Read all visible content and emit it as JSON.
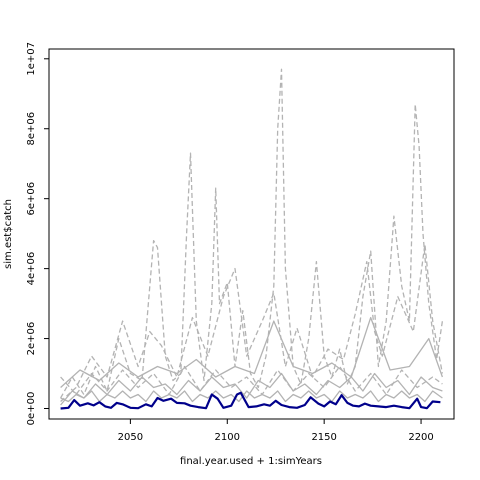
{
  "chart_data": {
    "type": "line",
    "title": "",
    "xlabel": "final.year.used + 1:simYears",
    "ylabel": "sim.est$catch",
    "xlim": [
      2008,
      2217
    ],
    "ylim": [
      -300000,
      10280000
    ],
    "x_ticks": [
      2050,
      2100,
      2150,
      2200
    ],
    "x_tick_labels": [
      "2050",
      "2100",
      "2150",
      "2200"
    ],
    "y_ticks": [
      0,
      2000000,
      4000000,
      6000000,
      8000000,
      10000000
    ],
    "y_tick_labels": [
      "0e+00",
      "2e+06",
      "4e+06",
      "6e+06",
      "8e+06",
      "1e+07"
    ],
    "grid": false,
    "legend": "none",
    "colors": {
      "simulations": "#b3b3b3",
      "estimate": "#00008b"
    },
    "series": [
      {
        "style": "solid",
        "color": "#00008b",
        "x": [
          2014,
          2018,
          2021,
          2024,
          2028,
          2031,
          2034,
          2037,
          2040,
          2043,
          2046,
          2050,
          2054,
          2058,
          2061,
          2064,
          2067,
          2071,
          2074,
          2078,
          2081,
          2085,
          2089,
          2092,
          2095,
          2098,
          2102,
          2105,
          2107,
          2111,
          2115,
          2119,
          2122,
          2125,
          2128,
          2132,
          2136,
          2140,
          2143,
          2147,
          2150,
          2153,
          2156,
          2159,
          2162,
          2165,
          2168,
          2171,
          2174,
          2178,
          2182,
          2186,
          2190,
          2194,
          2198,
          2200,
          2203,
          2206,
          2210
        ],
        "values": [
          0,
          20000,
          240000,
          80000,
          150000,
          90000,
          180000,
          60000,
          20000,
          160000,
          120000,
          20000,
          10000,
          120000,
          60000,
          300000,
          220000,
          280000,
          160000,
          150000,
          80000,
          40000,
          10000,
          400000,
          280000,
          20000,
          80000,
          400000,
          450000,
          40000,
          60000,
          120000,
          80000,
          220000,
          100000,
          40000,
          20000,
          100000,
          320000,
          140000,
          60000,
          200000,
          120000,
          380000,
          160000,
          80000,
          60000,
          140000,
          80000,
          60000,
          40000,
          80000,
          40000,
          10000,
          280000,
          40000,
          10000,
          200000,
          180000
        ]
      },
      {
        "style": "dashed",
        "color": "#b3b3b3",
        "x": [
          2014,
          2020,
          2026,
          2032,
          2038,
          2044,
          2050,
          2056,
          2060,
          2062,
          2064,
          2068,
          2072,
          2076,
          2079,
          2081,
          2084,
          2088,
          2092,
          2094,
          2096,
          2100,
          2104,
          2108,
          2112,
          2116,
          2120,
          2124,
          2126,
          2128,
          2130,
          2134,
          2138,
          2142,
          2146,
          2150,
          2154,
          2158,
          2162,
          2166,
          2170,
          2174,
          2178,
          2182,
          2186,
          2190,
          2194,
          2197,
          2199,
          2201,
          2204,
          2208,
          2211
        ],
        "values": [
          300000,
          900000,
          400000,
          1200000,
          500000,
          2000000,
          1000000,
          800000,
          3500000,
          4800000,
          4600000,
          1500000,
          800000,
          1000000,
          5000000,
          7300000,
          2500000,
          800000,
          3000000,
          6300000,
          3000000,
          3600000,
          1200000,
          2800000,
          1000000,
          600000,
          1500000,
          3500000,
          8000000,
          9700000,
          4000000,
          1200000,
          700000,
          2000000,
          4200000,
          1500000,
          900000,
          1700000,
          700000,
          1200000,
          3200000,
          4500000,
          1200000,
          2500000,
          5500000,
          3500000,
          2500000,
          8700000,
          7500000,
          5000000,
          3000000,
          1400000,
          2500000
        ]
      },
      {
        "style": "dashed",
        "color": "#b3b3b3",
        "x": [
          2014,
          2022,
          2030,
          2038,
          2046,
          2054,
          2060,
          2066,
          2074,
          2082,
          2090,
          2098,
          2104,
          2110,
          2118,
          2124,
          2130,
          2136,
          2144,
          2152,
          2160,
          2166,
          2172,
          2176,
          2180,
          2188,
          2196,
          2202,
          2206,
          2211
        ],
        "values": [
          200000,
          600000,
          1500000,
          900000,
          2500000,
          1200000,
          2200000,
          1800000,
          900000,
          2600000,
          1500000,
          3200000,
          4000000,
          1500000,
          2500000,
          3300000,
          1200000,
          2300000,
          900000,
          1700000,
          1400000,
          2700000,
          4200000,
          2200000,
          1500000,
          3200000,
          2200000,
          4700000,
          2500000,
          1000000
        ]
      },
      {
        "style": "solid",
        "color": "#b3b3b3",
        "x": [
          2014,
          2024,
          2034,
          2044,
          2054,
          2064,
          2074,
          2084,
          2094,
          2104,
          2114,
          2124,
          2134,
          2144,
          2154,
          2164,
          2174,
          2184,
          2194,
          2204,
          2211
        ],
        "values": [
          600000,
          1100000,
          800000,
          1300000,
          900000,
          1200000,
          1000000,
          1400000,
          900000,
          1200000,
          1000000,
          2500000,
          1200000,
          1000000,
          1300000,
          900000,
          2600000,
          1100000,
          1200000,
          2000000,
          900000
        ]
      },
      {
        "style": "solid",
        "color": "#b3b3b3",
        "x": [
          2014,
          2020,
          2026,
          2032,
          2038,
          2044,
          2050,
          2056,
          2062,
          2068,
          2074,
          2080,
          2086,
          2092,
          2098,
          2104,
          2110,
          2116,
          2122,
          2128,
          2134,
          2140,
          2146,
          2152,
          2158,
          2164,
          2170,
          2176,
          2182,
          2188,
          2194,
          2200,
          2206,
          2211
        ],
        "values": [
          100000,
          500000,
          300000,
          700000,
          400000,
          800000,
          500000,
          900000,
          600000,
          700000,
          400000,
          800000,
          500000,
          900000,
          600000,
          700000,
          300000,
          800000,
          600000,
          1000000,
          500000,
          700000,
          400000,
          800000,
          600000,
          900000,
          500000,
          1000000,
          600000,
          800000,
          400000,
          900000,
          600000,
          500000
        ]
      },
      {
        "style": "dashed",
        "color": "#b3b3b3",
        "x": [
          2014,
          2022,
          2030,
          2038,
          2046,
          2054,
          2062,
          2070,
          2078,
          2086,
          2094,
          2102,
          2110,
          2118,
          2126,
          2134,
          2142,
          2150,
          2158,
          2166,
          2174,
          2182,
          2190,
          2198,
          2206,
          2211
        ],
        "values": [
          900000,
          400000,
          1000000,
          500000,
          1100000,
          600000,
          1000000,
          400000,
          1200000,
          500000,
          1100000,
          600000,
          900000,
          400000,
          1100000,
          500000,
          1000000,
          600000,
          1200000,
          500000,
          1000000,
          400000,
          1100000,
          600000,
          900000,
          700000
        ]
      },
      {
        "style": "solid",
        "color": "#b3b3b3",
        "x": [
          2014,
          2018,
          2022,
          2026,
          2030,
          2034,
          2038,
          2042,
          2046,
          2050,
          2054,
          2058,
          2062,
          2066,
          2070,
          2074,
          2078,
          2082,
          2086,
          2090,
          2094,
          2098,
          2102,
          2106,
          2110,
          2114,
          2118,
          2122,
          2126,
          2130,
          2134,
          2138,
          2142,
          2146,
          2150,
          2154,
          2158,
          2162,
          2166,
          2170,
          2174,
          2178,
          2182,
          2186,
          2190,
          2194,
          2198,
          2202,
          2206,
          2211
        ],
        "values": [
          300000,
          200000,
          400000,
          300000,
          500000,
          200000,
          400000,
          300000,
          500000,
          300000,
          400000,
          200000,
          500000,
          300000,
          400000,
          300000,
          500000,
          200000,
          400000,
          300000,
          500000,
          300000,
          400000,
          200000,
          500000,
          300000,
          400000,
          300000,
          500000,
          200000,
          400000,
          300000,
          500000,
          300000,
          400000,
          200000,
          500000,
          300000,
          400000,
          300000,
          500000,
          200000,
          400000,
          300000,
          500000,
          300000,
          400000,
          200000,
          500000,
          300000
        ]
      }
    ]
  }
}
